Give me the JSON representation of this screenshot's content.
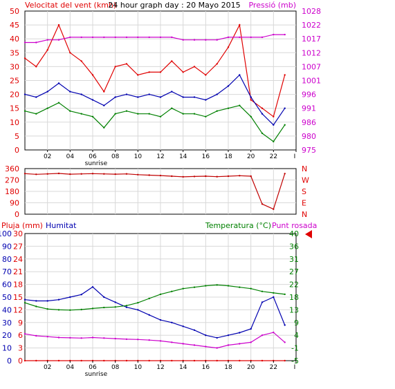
{
  "header": {
    "wind_label": "Velocitat del vent (kmh)",
    "graph_title": "24 hour graph day : 20 Mayo 2015",
    "pressure_label": "Pressió (mb)"
  },
  "mid_panel": {
    "direction_labels": [
      "N",
      "W",
      "S",
      "E",
      "N"
    ]
  },
  "bottom_panel": {
    "rain_label": "Pluja (mm)",
    "humidity_label": "Humitat",
    "temperature_label": "Temperatura (°C)",
    "dewpoint_label": "Punt rosada"
  },
  "time_axis": {
    "ticks": [
      "02",
      "04",
      "06",
      "08",
      "10",
      "12",
      "14",
      "16",
      "18",
      "20",
      "22",
      "I"
    ],
    "sunrise_label": "sunrise"
  },
  "colors": {
    "wind_gust": "#e00000",
    "wind_avg": "#0000b0",
    "wind_min": "#008000",
    "pressure": "#cc00cc",
    "direction": "#c00000",
    "humidity": "#0000b0",
    "temperature": "#008000",
    "dewpoint": "#cc00cc",
    "rain": "#e00000",
    "marker": "#e00000"
  },
  "chart_data": [
    {
      "type": "line",
      "title": "24 hour graph day : 20 Mayo 2015",
      "ylabel": "Velocitat del vent (kmh)",
      "y2label": "Pressió (mb)",
      "x_ticks": [
        "02",
        "04",
        "06",
        "08",
        "10",
        "12",
        "14",
        "16",
        "18",
        "20",
        "22",
        "I"
      ],
      "ylim": [
        0,
        50
      ],
      "y_ticks": [
        0,
        5,
        10,
        15,
        20,
        25,
        30,
        35,
        40,
        45,
        50
      ],
      "y2lim": [
        975,
        1028
      ],
      "y2_ticks": [
        975,
        980,
        986,
        991,
        996,
        1001,
        1007,
        1012,
        1017,
        1022,
        1028
      ],
      "grid": true,
      "x_hours": [
        0,
        1,
        2,
        3,
        4,
        5,
        6,
        7,
        8,
        9,
        10,
        11,
        12,
        13,
        14,
        15,
        16,
        17,
        18,
        19,
        20,
        21,
        22,
        23
      ],
      "series": [
        {
          "name": "gust",
          "color": "#e00000",
          "values": [
            33,
            30,
            36,
            45,
            35,
            32,
            27,
            21,
            30,
            31,
            27,
            28,
            28,
            32,
            28,
            30,
            27,
            31,
            37,
            45,
            18,
            15,
            12,
            27
          ]
        },
        {
          "name": "average",
          "color": "#0000b0",
          "values": [
            20,
            19,
            21,
            24,
            21,
            20,
            18,
            16,
            19,
            20,
            19,
            20,
            19,
            21,
            19,
            19,
            18,
            20,
            23,
            27,
            19,
            13,
            9,
            15
          ]
        },
        {
          "name": "minimum",
          "color": "#008000",
          "values": [
            14,
            13,
            15,
            17,
            14,
            13,
            12,
            8,
            13,
            14,
            13,
            13,
            12,
            15,
            13,
            13,
            12,
            14,
            15,
            16,
            12,
            6,
            3,
            9
          ]
        },
        {
          "name": "pressure",
          "axis": "right",
          "color": "#cc00cc",
          "values": [
            1016,
            1016,
            1017,
            1017,
            1018,
            1018,
            1018,
            1018,
            1018,
            1018,
            1018,
            1018,
            1018,
            1018,
            1017,
            1017,
            1017,
            1017,
            1018,
            1018,
            1018,
            1018,
            1019,
            1019
          ]
        }
      ]
    },
    {
      "type": "line",
      "ylim": [
        0,
        360
      ],
      "y_ticks": [
        0,
        90,
        180,
        270,
        360
      ],
      "direction_labels": [
        "N",
        "W",
        "S",
        "E",
        "N"
      ],
      "grid": true,
      "x_hours": [
        0,
        1,
        2,
        3,
        4,
        5,
        6,
        7,
        8,
        9,
        10,
        11,
        12,
        13,
        14,
        15,
        16,
        17,
        18,
        19,
        20,
        21,
        22,
        23
      ],
      "series": [
        {
          "name": "direction",
          "color": "#c00000",
          "values": [
            320,
            315,
            318,
            322,
            316,
            318,
            320,
            318,
            316,
            318,
            312,
            308,
            305,
            300,
            295,
            298,
            300,
            296,
            300,
            304,
            300,
            80,
            40,
            320
          ]
        }
      ]
    },
    {
      "type": "line",
      "ylim_humidity": [
        0,
        100
      ],
      "humidity_ticks": [
        0,
        10,
        20,
        30,
        40,
        50,
        60,
        70,
        80,
        90,
        100
      ],
      "ylim_rain": [
        0,
        30
      ],
      "rain_ticks": [
        0,
        3,
        6,
        9,
        12,
        15,
        18,
        21,
        24,
        27,
        30
      ],
      "ylim_temperature": [
        -5,
        40
      ],
      "temperature_ticks": [
        -5,
        -1,
        4,
        9,
        13,
        18,
        22,
        27,
        31,
        36,
        40
      ],
      "grid": true,
      "x_hours": [
        0,
        1,
        2,
        3,
        4,
        5,
        6,
        7,
        8,
        9,
        10,
        11,
        12,
        13,
        14,
        15,
        16,
        17,
        18,
        19,
        20,
        21,
        22,
        23
      ],
      "series": [
        {
          "name": "humidity",
          "axis": "humidity",
          "color": "#0000b0",
          "values": [
            48,
            47,
            47,
            48,
            50,
            52,
            58,
            50,
            46,
            42,
            40,
            36,
            32,
            30,
            27,
            24,
            20,
            18,
            20,
            22,
            25,
            46,
            50,
            28
          ]
        },
        {
          "name": "temperature",
          "axis": "temperature",
          "color": "#008000",
          "values": [
            15.5,
            14.2,
            13.3,
            13.0,
            12.9,
            13.1,
            13.5,
            13.8,
            14.0,
            14.5,
            15.5,
            17.0,
            18.5,
            19.5,
            20.5,
            21.0,
            21.5,
            21.8,
            21.5,
            21.0,
            20.5,
            19.5,
            19.0,
            18.5
          ]
        },
        {
          "name": "dewpoint",
          "axis": "temperature",
          "color": "#cc00cc",
          "values": [
            4.5,
            3.8,
            3.5,
            3.2,
            3.1,
            3.0,
            3.2,
            3.0,
            2.8,
            2.6,
            2.5,
            2.3,
            2.0,
            1.5,
            1.0,
            0.5,
            0.0,
            -0.5,
            0.5,
            1.0,
            1.5,
            4.0,
            5.0,
            1.5
          ]
        },
        {
          "name": "rain",
          "axis": "rain",
          "color": "#e00000",
          "values": [
            0,
            0,
            0,
            0,
            0,
            0,
            0,
            0,
            0,
            0,
            0,
            0,
            0,
            0,
            0,
            0,
            0,
            0,
            0,
            0,
            0,
            0,
            0,
            0
          ]
        }
      ]
    }
  ]
}
